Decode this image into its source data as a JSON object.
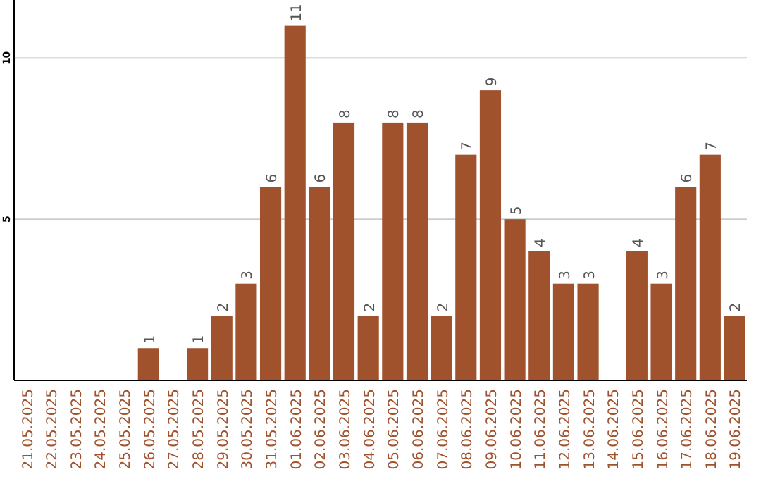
{
  "chart_data": {
    "type": "bar",
    "categories": [
      "21.05.2025",
      "22.05.2025",
      "23.05.2025",
      "24.05.2025",
      "25.05.2025",
      "26.05.2025",
      "27.05.2025",
      "28.05.2025",
      "29.05.2025",
      "30.05.2025",
      "31.05.2025",
      "01.06.2025",
      "02.06.2025",
      "03.06.2025",
      "04.06.2025",
      "05.06.2025",
      "06.06.2025",
      "07.06.2025",
      "08.06.2025",
      "09.06.2025",
      "10.06.2025",
      "11.06.2025",
      "12.06.2025",
      "13.06.2025",
      "14.06.2025",
      "15.06.2025",
      "16.06.2025",
      "17.06.2025",
      "18.06.2025",
      "19.06.2025"
    ],
    "values": [
      0,
      0,
      0,
      0,
      0,
      1,
      0,
      1,
      2,
      3,
      6,
      11,
      6,
      8,
      2,
      8,
      8,
      2,
      7,
      9,
      5,
      4,
      3,
      3,
      0,
      4,
      3,
      6,
      7,
      2
    ],
    "value_labels": [
      null,
      null,
      null,
      null,
      null,
      "1",
      null,
      "1",
      "2",
      "3",
      "6",
      "11",
      "6",
      "8",
      "2",
      "8",
      "8",
      "2",
      "7",
      "9",
      "5",
      "4",
      "3",
      "3",
      null,
      "4",
      "3",
      "6",
      "7",
      "2"
    ],
    "color": "#a0522d",
    "ylim": [
      0,
      11.8
    ],
    "yticks": [
      5,
      10
    ],
    "grid": "y"
  }
}
